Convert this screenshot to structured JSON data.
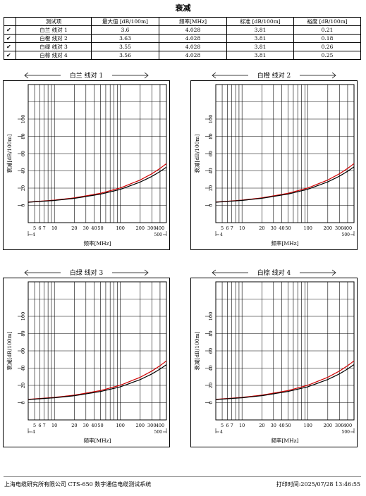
{
  "title": "衰减",
  "table": {
    "headers": [
      "测试项",
      "最大值 [dB/100m]",
      "频率[MHz]",
      "标准 [dB/100m]",
      "裕度 [dB/100m]"
    ],
    "rows": [
      {
        "check": "✔",
        "item": "白兰 线对 1",
        "max": "3.6",
        "freq": "4.028",
        "std": "3.81",
        "margin": "0.21"
      },
      {
        "check": "✔",
        "item": "白橙 线对 2",
        "max": "3.63",
        "freq": "4.028",
        "std": "3.81",
        "margin": "0.18"
      },
      {
        "check": "✔",
        "item": "白绿 线对 3",
        "max": "3.55",
        "freq": "4.028",
        "std": "3.81",
        "margin": "0.26"
      },
      {
        "check": "✔",
        "item": "白棕 线对 4",
        "max": "3.56",
        "freq": "4.028",
        "std": "3.81",
        "margin": "0.25"
      }
    ]
  },
  "chart_data": [
    {
      "type": "line",
      "title": "白兰 线对 1",
      "xlabel": "频率[MHz]",
      "ylabel": "衰减[dB/100m]",
      "x_scale": "log",
      "xlim": [
        4,
        500
      ],
      "ylim": [
        -20,
        140
      ],
      "x_ticks": [
        "5",
        "6",
        "7",
        "10",
        "20",
        "30",
        "40",
        "50",
        "100",
        "200",
        "300",
        "400"
      ],
      "x_extra_ticks": [
        "4",
        "500"
      ],
      "y_ticks": [
        "0",
        "20",
        "40",
        "60",
        "80",
        "100"
      ],
      "grid": true,
      "series": [
        {
          "color": "#d00000",
          "x": [
            4,
            10,
            20,
            50,
            100,
            200,
            300,
            400,
            500
          ],
          "y": [
            3.81,
            6.1,
            8.7,
            14,
            20.2,
            29.4,
            36.6,
            42.8,
            48.4
          ]
        },
        {
          "color": "#000000",
          "x": [
            4,
            10,
            20,
            50,
            100,
            200,
            300,
            400,
            500
          ],
          "y": [
            3.6,
            5.7,
            8.1,
            13,
            18.5,
            27,
            33.5,
            39.2,
            44.3
          ]
        }
      ]
    },
    {
      "type": "line",
      "title": "白橙 线对 2",
      "xlabel": "频率[MHz]",
      "ylabel": "衰减[dB/100m]",
      "x_scale": "log",
      "xlim": [
        4,
        500
      ],
      "ylim": [
        -20,
        140
      ],
      "x_ticks": [
        "5",
        "6",
        "7",
        "10",
        "20",
        "30",
        "40",
        "50",
        "100",
        "200",
        "300",
        "400"
      ],
      "x_extra_ticks": [
        "4",
        "500"
      ],
      "y_ticks": [
        "0",
        "20",
        "40",
        "60",
        "80",
        "100"
      ],
      "grid": true,
      "series": [
        {
          "color": "#d00000",
          "x": [
            4,
            10,
            20,
            50,
            100,
            200,
            300,
            400,
            500
          ],
          "y": [
            3.81,
            6.1,
            8.7,
            14,
            20.2,
            29.4,
            36.6,
            42.8,
            48.4
          ]
        },
        {
          "color": "#000000",
          "x": [
            4,
            10,
            20,
            50,
            100,
            200,
            300,
            400,
            500
          ],
          "y": [
            3.63,
            5.75,
            8.2,
            13.1,
            18.7,
            27.2,
            33.8,
            39.5,
            44.6
          ]
        }
      ]
    },
    {
      "type": "line",
      "title": "白绿 线对 3",
      "xlabel": "频率[MHz]",
      "ylabel": "衰减[dB/100m]",
      "x_scale": "log",
      "xlim": [
        4,
        500
      ],
      "ylim": [
        -20,
        140
      ],
      "x_ticks": [
        "5",
        "6",
        "7",
        "10",
        "20",
        "30",
        "40",
        "50",
        "100",
        "200",
        "300",
        "400"
      ],
      "x_extra_ticks": [
        "4",
        "500"
      ],
      "y_ticks": [
        "0",
        "20",
        "40",
        "60",
        "80",
        "100"
      ],
      "grid": true,
      "series": [
        {
          "color": "#d00000",
          "x": [
            4,
            10,
            20,
            50,
            100,
            200,
            300,
            400,
            500
          ],
          "y": [
            3.81,
            6.1,
            8.7,
            14,
            20.2,
            29.4,
            36.6,
            42.8,
            48.4
          ]
        },
        {
          "color": "#000000",
          "x": [
            4,
            10,
            20,
            50,
            100,
            200,
            300,
            400,
            500
          ],
          "y": [
            3.55,
            5.65,
            8.0,
            12.9,
            18.3,
            26.7,
            33.2,
            38.9,
            44.0
          ]
        }
      ]
    },
    {
      "type": "line",
      "title": "白棕 线对 4",
      "xlabel": "频率[MHz]",
      "ylabel": "衰减[dB/100m]",
      "x_scale": "log",
      "xlim": [
        4,
        500
      ],
      "ylim": [
        -20,
        140
      ],
      "x_ticks": [
        "5",
        "6",
        "7",
        "10",
        "20",
        "30",
        "40",
        "50",
        "100",
        "200",
        "300",
        "400"
      ],
      "x_extra_ticks": [
        "4",
        "500"
      ],
      "y_ticks": [
        "0",
        "20",
        "40",
        "60",
        "80",
        "100"
      ],
      "grid": true,
      "series": [
        {
          "color": "#d00000",
          "x": [
            4,
            10,
            20,
            50,
            100,
            200,
            300,
            400,
            500
          ],
          "y": [
            3.81,
            6.1,
            8.7,
            14,
            20.2,
            29.4,
            36.6,
            42.8,
            48.4
          ]
        },
        {
          "color": "#000000",
          "x": [
            4,
            10,
            20,
            50,
            100,
            200,
            300,
            400,
            500
          ],
          "y": [
            3.56,
            5.66,
            8.05,
            12.95,
            18.4,
            26.8,
            33.3,
            39.0,
            44.1
          ]
        }
      ]
    }
  ],
  "footer": {
    "left": "上海电缆研究所有限公司 CTS-650 数字通信电缆测试系统",
    "right": "打印时间:2025/07/28 13:46:55"
  }
}
